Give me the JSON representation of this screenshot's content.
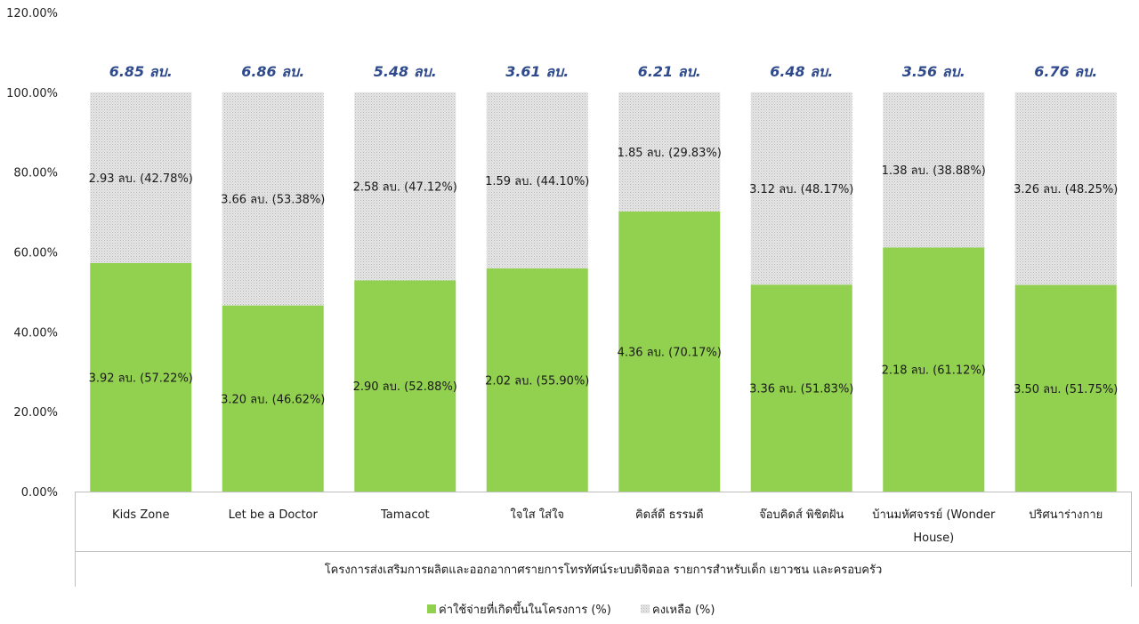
{
  "chart_data": {
    "type": "bar",
    "stacked": true,
    "y_tick_labels": [
      "0.00%",
      "20.00%",
      "40.00%",
      "60.00%",
      "80.00%",
      "100.00%",
      "120.00%"
    ],
    "ylim": [
      0,
      120
    ],
    "group_label": "โครงการส่งเสริมการผลิตและออกอากาศรายการโทรทัศน์ระบบดิจิตอล รายการสำหรับเด็ก เยาวชน และครอบครัว",
    "categories": [
      [
        "Kids Zone"
      ],
      [
        "Let be a Doctor"
      ],
      [
        "Tamacot"
      ],
      [
        "ใจใส ใส่ใจ"
      ],
      [
        "คิดส์ดี ธรรมดี"
      ],
      [
        "จ๊อบคิดส์ พิชิตฝัน"
      ],
      [
        "บ้านมหัศจรรย์ (Wonder",
        "House)"
      ],
      [
        "ปริศนาร่างกาย"
      ]
    ],
    "totals": [
      "6.85 ลบ.",
      "6.86 ลบ.",
      "5.48 ลบ.",
      "3.61 ลบ.",
      "6.21 ลบ.",
      "6.48 ลบ.",
      "3.56 ลบ.",
      "6.76 ลบ."
    ],
    "series": [
      {
        "name": "ค่าใช้จ่ายที่เกิดขึ้นในโครงการ (%)",
        "color": "#92d050",
        "values": [
          57.22,
          46.62,
          52.88,
          55.9,
          70.17,
          51.83,
          61.12,
          51.75
        ],
        "labels": [
          "3.92 ลบ. (57.22%)",
          "3.20 ลบ. (46.62%)",
          "2.90 ลบ. (52.88%)",
          "2.02 ลบ. (55.90%)",
          "4.36 ลบ. (70.17%)",
          "3.36 ลบ. (51.83%)",
          "2.18 ลบ. (61.12%)",
          "3.50 ลบ. (51.75%)"
        ]
      },
      {
        "name": "คงเหลือ (%)",
        "color": "#d9d9d9",
        "values": [
          42.78,
          53.38,
          47.12,
          44.1,
          29.83,
          48.17,
          38.88,
          48.25
        ],
        "labels": [
          "2.93 ลบ. (42.78%)",
          "3.66 ลบ. (53.38%)",
          "2.58 ลบ. (47.12%)",
          "1.59 ลบ. (44.10%)",
          "1.85 ลบ. (29.83%)",
          "3.12 ลบ. (48.17%)",
          "1.38 ลบ. (38.88%)",
          "3.26 ลบ. (48.25%)"
        ]
      }
    ],
    "grid": false,
    "legend_position": "bottom-center"
  }
}
